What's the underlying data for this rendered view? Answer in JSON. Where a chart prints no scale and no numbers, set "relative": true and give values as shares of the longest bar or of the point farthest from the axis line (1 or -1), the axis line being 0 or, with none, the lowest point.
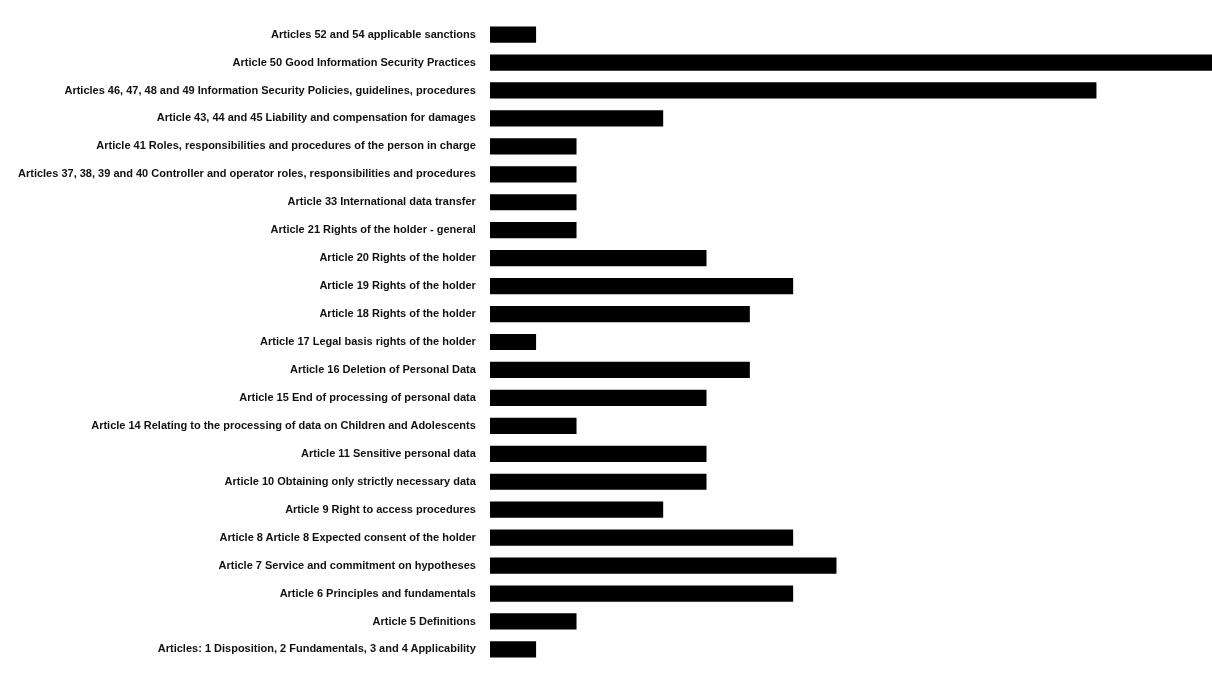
{
  "chart_data": {
    "type": "bar",
    "orientation": "horizontal",
    "relative": true,
    "color": "#000000",
    "categories": [
      "Articles 52 and 54 applicable sanctions",
      "Article 50 Good Information Security Practices",
      "Articles 46, 47, 48 and 49 Information Security Policies, guidelines, procedures",
      "Article 43, 44 and 45 Liability and compensation for damages",
      "Article 41 Roles, responsibilities and procedures of the person in charge",
      "Articles 37, 38, 39 and 40 Controller and operator roles, responsibilities and procedures",
      "Article 33 International data transfer",
      "Article 21 Rights of the holder - general",
      "Article 20 Rights of the holder",
      "Article 19 Rights of the holder",
      "Article 18 Rights of the holder",
      "Article 17 Legal basis rights of the holder",
      "Article 16 Deletion of Personal Data",
      "Article 15 End of processing of personal data",
      "Article 14 Relating to the processing of data on Children and Adolescents",
      "Article 11 Sensitive personal data",
      "Article 10 Obtaining only strictly necessary data",
      "Article 9 Right to access procedures",
      "Article 8 Article 8 Expected consent of the holder",
      "Article 7 Service and commitment on hypotheses",
      "Article 6 Principles and fundamentals",
      "Article 5 Definitions",
      "Articles: 1 Disposition, 2 Fundamentals, 3 and 4 Applicability"
    ],
    "values": [
      0.064,
      1,
      0.84,
      0.24,
      0.12,
      0.12,
      0.12,
      0.12,
      0.3,
      0.42,
      0.36,
      0.064,
      0.36,
      0.3,
      0.12,
      0.3,
      0.3,
      0.24,
      0.42,
      0.48,
      0.42,
      0.12,
      0.064
    ]
  }
}
